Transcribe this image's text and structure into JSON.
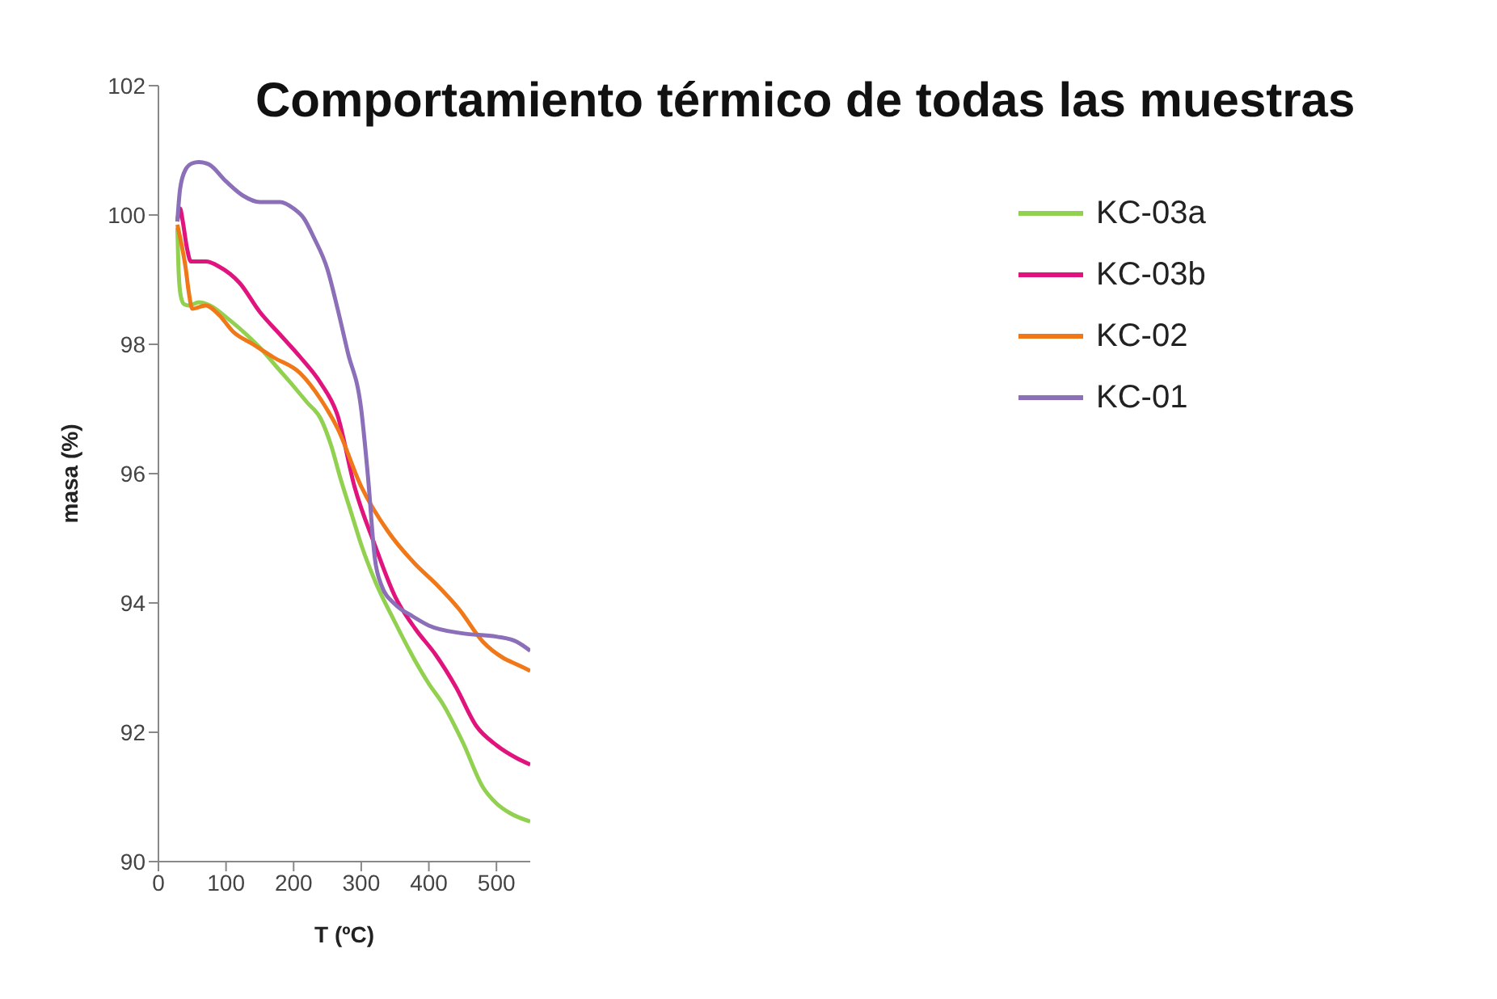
{
  "chart_data": {
    "type": "line",
    "title": "Comportamiento térmico de todas las muestras",
    "xlabel": "T (ºC)",
    "ylabel": "masa (%)",
    "xlim": [
      0,
      550
    ],
    "xticks": [
      0,
      100,
      200,
      300,
      400,
      500
    ],
    "ylim": [
      90,
      102
    ],
    "yticks": [
      90,
      92,
      94,
      96,
      98,
      100,
      102
    ],
    "legend": "top right",
    "marker": "none",
    "line_style": "solid",
    "series": [
      {
        "name": "KC-03a",
        "color": "#92d050",
        "x": [
          28,
          30,
          33,
          38,
          45,
          60,
          80,
          100,
          125,
          150,
          175,
          200,
          220,
          240,
          255,
          270,
          285,
          300,
          320,
          350,
          380,
          400,
          420,
          450,
          480,
          500,
          520,
          550
        ],
        "values": [
          99.8,
          99.1,
          98.75,
          98.62,
          98.6,
          98.65,
          98.58,
          98.42,
          98.2,
          97.95,
          97.65,
          97.35,
          97.1,
          96.85,
          96.45,
          95.9,
          95.4,
          94.9,
          94.35,
          93.7,
          93.1,
          92.75,
          92.45,
          91.85,
          91.15,
          90.9,
          90.75,
          90.62
        ]
      },
      {
        "name": "KC-03b",
        "color": "#e0147c",
        "x": [
          28,
          32,
          36,
          42,
          48,
          70,
          90,
          120,
          150,
          180,
          210,
          240,
          265,
          290,
          320,
          350,
          380,
          410,
          440,
          470,
          500,
          530,
          550
        ],
        "values": [
          99.9,
          100.1,
          99.9,
          99.5,
          99.28,
          99.28,
          99.2,
          98.95,
          98.5,
          98.15,
          97.8,
          97.4,
          96.9,
          95.8,
          94.9,
          94.1,
          93.6,
          93.2,
          92.7,
          92.1,
          91.8,
          91.6,
          91.5
        ]
      },
      {
        "name": "KC-02",
        "color": "#f07818",
        "x": [
          28,
          35,
          40,
          45,
          50,
          70,
          90,
          110,
          140,
          170,
          210,
          240,
          265,
          300,
          340,
          380,
          410,
          445,
          480,
          510,
          530,
          550
        ],
        "values": [
          99.85,
          99.5,
          99.2,
          98.8,
          98.55,
          98.6,
          98.45,
          98.2,
          98.0,
          97.8,
          97.55,
          97.15,
          96.7,
          95.8,
          95.1,
          94.6,
          94.3,
          93.9,
          93.4,
          93.15,
          93.05,
          92.95
        ]
      },
      {
        "name": "KC-01",
        "color": "#8b6fb8",
        "x": [
          28,
          32,
          40,
          50,
          60,
          75,
          100,
          125,
          150,
          180,
          200,
          215,
          230,
          250,
          265,
          280,
          300,
          310,
          320,
          330,
          350,
          375,
          400,
          450,
          500,
          530,
          550
        ],
        "values": [
          99.9,
          100.4,
          100.7,
          100.8,
          100.82,
          100.78,
          100.52,
          100.3,
          100.2,
          100.2,
          100.1,
          99.95,
          99.65,
          99.16,
          98.55,
          97.88,
          96.99,
          95.95,
          94.7,
          94.27,
          93.98,
          93.8,
          93.65,
          93.53,
          93.48,
          93.4,
          93.26
        ]
      }
    ]
  }
}
